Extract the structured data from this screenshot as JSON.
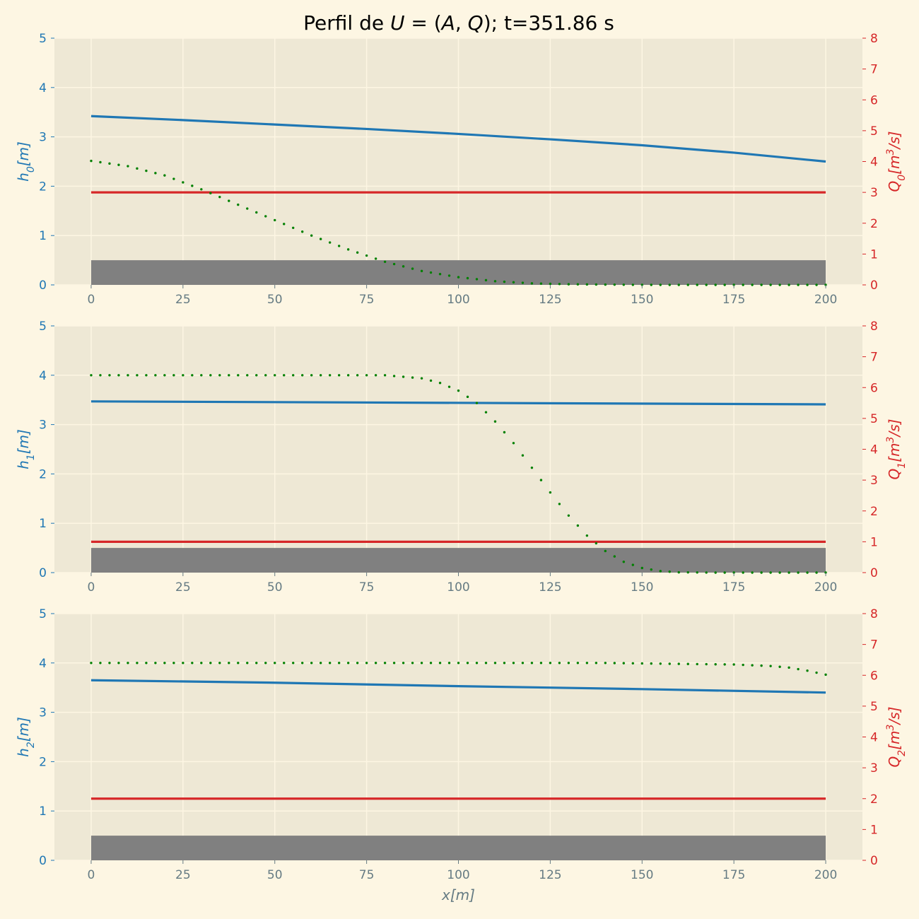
{
  "title": "Perfil de U = (A, Q); t=351.86 s",
  "title_parts": {
    "prefix": "Perfil de ",
    "U": "U",
    "eq": " = (",
    "A": "A",
    "comma": ", ",
    "Q": "Q",
    "close": "); t=351.86 s"
  },
  "colors": {
    "background": "#fdf6e3",
    "axes_face": "#eee8d5",
    "grid": "#fdf6e3",
    "depth_line": "#1f77b4",
    "flow_line": "#d62728",
    "dotted_line": "#008000",
    "bed": "#808080",
    "x_tick": "#657b83"
  },
  "chart_data": [
    {
      "type": "line",
      "name": "panel-0",
      "xlabel": "",
      "ylabel_left": "h_0[m]",
      "ylabel_right": "Q_0[m^3/s]",
      "xlim": [
        -10,
        210
      ],
      "ylim_left": [
        0,
        5
      ],
      "ylim_right": [
        0,
        8
      ],
      "xticks": [
        0,
        25,
        50,
        75,
        100,
        125,
        150,
        175,
        200
      ],
      "yticks_left": [
        0,
        1,
        2,
        3,
        4,
        5
      ],
      "yticks_right": [
        0,
        1,
        2,
        3,
        4,
        5,
        6,
        7,
        8
      ],
      "grid": true,
      "bed": {
        "x": [
          0,
          200
        ],
        "height": 0.5
      },
      "depth": {
        "x": [
          0,
          25,
          50,
          75,
          100,
          125,
          150,
          175,
          200
        ],
        "y": [
          3.42,
          3.34,
          3.25,
          3.16,
          3.06,
          2.95,
          2.83,
          2.68,
          2.5
        ]
      },
      "flow": {
        "x": [
          0,
          200
        ],
        "y": [
          3.0,
          3.0
        ]
      },
      "dotted": {
        "x": [
          0,
          10,
          20,
          30,
          40,
          50,
          60,
          70,
          80,
          90,
          100,
          110,
          120,
          130,
          140,
          150,
          200
        ],
        "y": [
          4.02,
          3.85,
          3.55,
          3.1,
          2.6,
          2.1,
          1.6,
          1.15,
          0.75,
          0.45,
          0.25,
          0.12,
          0.05,
          0.02,
          0.01,
          0.0,
          0.0
        ]
      }
    },
    {
      "type": "line",
      "name": "panel-1",
      "xlabel": "",
      "ylabel_left": "h_1[m]",
      "ylabel_right": "Q_1[m^3/s]",
      "xlim": [
        -10,
        210
      ],
      "ylim_left": [
        0,
        5
      ],
      "ylim_right": [
        0,
        8
      ],
      "xticks": [
        0,
        25,
        50,
        75,
        100,
        125,
        150,
        175,
        200
      ],
      "yticks_left": [
        0,
        1,
        2,
        3,
        4,
        5
      ],
      "yticks_right": [
        0,
        1,
        2,
        3,
        4,
        5,
        6,
        7,
        8
      ],
      "grid": true,
      "bed": {
        "x": [
          0,
          200
        ],
        "height": 0.5
      },
      "depth": {
        "x": [
          0,
          200
        ],
        "y": [
          3.47,
          3.41
        ]
      },
      "flow": {
        "x": [
          0,
          200
        ],
        "y": [
          1.0,
          1.0
        ]
      },
      "dotted": {
        "x": [
          0,
          80,
          90,
          95,
          100,
          105,
          110,
          115,
          120,
          125,
          130,
          135,
          140,
          145,
          150,
          155,
          160,
          170,
          200
        ],
        "y": [
          6.4,
          6.4,
          6.3,
          6.15,
          5.9,
          5.5,
          4.9,
          4.2,
          3.4,
          2.6,
          1.85,
          1.2,
          0.7,
          0.35,
          0.15,
          0.05,
          0.01,
          0.0,
          0.0
        ]
      }
    },
    {
      "type": "line",
      "name": "panel-2",
      "xlabel": "x[m]",
      "ylabel_left": "h_2[m]",
      "ylabel_right": "Q_2[m^3/s]",
      "xlim": [
        -10,
        210
      ],
      "ylim_left": [
        0,
        5
      ],
      "ylim_right": [
        0,
        8
      ],
      "xticks": [
        0,
        25,
        50,
        75,
        100,
        125,
        150,
        175,
        200
      ],
      "yticks_left": [
        0,
        1,
        2,
        3,
        4,
        5
      ],
      "yticks_right": [
        0,
        1,
        2,
        3,
        4,
        5,
        6,
        7,
        8
      ],
      "grid": true,
      "bed": {
        "x": [
          0,
          200
        ],
        "height": 0.5
      },
      "depth": {
        "x": [
          0,
          50,
          100,
          150,
          200
        ],
        "y": [
          3.65,
          3.6,
          3.53,
          3.47,
          3.4
        ]
      },
      "flow": {
        "x": [
          0,
          200
        ],
        "y": [
          2.0,
          2.0
        ]
      },
      "dotted": {
        "x": [
          0,
          140,
          160,
          175,
          185,
          190,
          195,
          200
        ],
        "y": [
          6.4,
          6.4,
          6.37,
          6.35,
          6.3,
          6.25,
          6.15,
          6.02
        ]
      }
    }
  ]
}
